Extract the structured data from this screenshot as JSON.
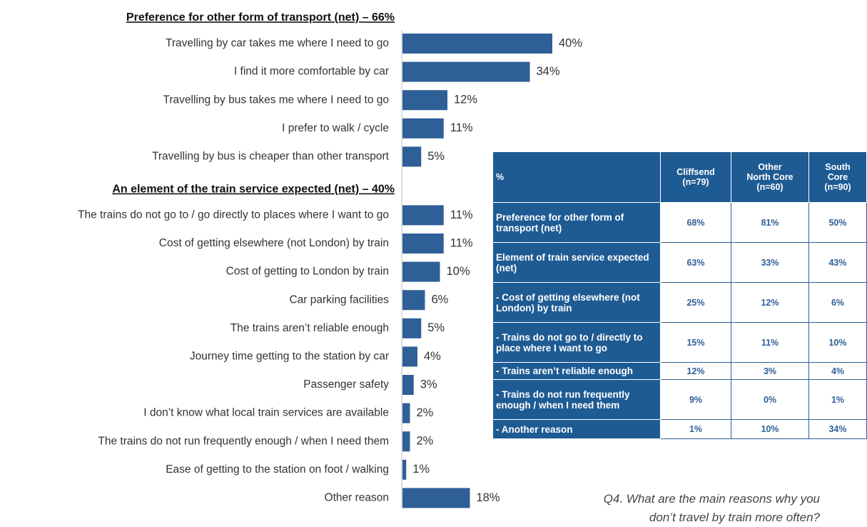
{
  "chart_data": {
    "type": "bar",
    "color": "#2f5f97",
    "groups": [
      {
        "title": "Preference for other form of transport  (net) – 66%",
        "categories": [
          "Travelling by car takes me where I need to go",
          "I find it more comfortable by car",
          "Travelling by bus takes me where I need to go",
          "I prefer to walk / cycle",
          "Travelling by bus is cheaper than other transport"
        ],
        "values": [
          40,
          34,
          12,
          11,
          5
        ],
        "value_labels": [
          "40%",
          "34%",
          "12%",
          "11%",
          "5%"
        ]
      },
      {
        "title": "An element of the train service expected (net) – 40%",
        "categories": [
          "The trains do not go to / go directly to places where I want to go",
          "Cost of getting elsewhere (not London) by train",
          "Cost of getting to London by train",
          "Car parking facilities",
          "The trains aren’t reliable enough",
          "Journey time getting to the station by car",
          "Passenger safety",
          "I don’t know what local train services are available",
          "The trains do not run frequently enough / when I need them",
          "Ease of getting to the station on foot / walking",
          "Other reason"
        ],
        "values": [
          11,
          11,
          10,
          6,
          5,
          4,
          3,
          2,
          2,
          1,
          18
        ],
        "value_labels": [
          "11%",
          "11%",
          "10%",
          "6%",
          "5%",
          "4%",
          "3%",
          "2%",
          "2%",
          "1%",
          "18%"
        ]
      }
    ]
  },
  "table": {
    "header": [
      "%",
      "Cliffsend\n(n=79)",
      "Other\nNorth Core\n(n=60)",
      "South\nCore\n(n=90)"
    ],
    "rows": [
      [
        "Preference for other form of transport (net)",
        "68%",
        "81%",
        "50%"
      ],
      [
        "Element of train service expected (net)",
        "63%",
        "33%",
        "43%"
      ],
      [
        "- Cost of getting elsewhere (not London) by train",
        "25%",
        "12%",
        "6%"
      ],
      [
        "- Trains do not go to / directly to place where I want to go",
        "15%",
        "11%",
        "10%"
      ],
      [
        "- Trains aren’t reliable enough",
        "12%",
        "3%",
        "4%"
      ],
      [
        "- Trains do not run frequently enough / when I need them",
        "9%",
        "0%",
        "1%"
      ],
      [
        "- Another reason",
        "1%",
        "10%",
        "34%"
      ]
    ]
  },
  "question": "Q4. What are the main reasons why you\ndon’t travel by train more often?"
}
